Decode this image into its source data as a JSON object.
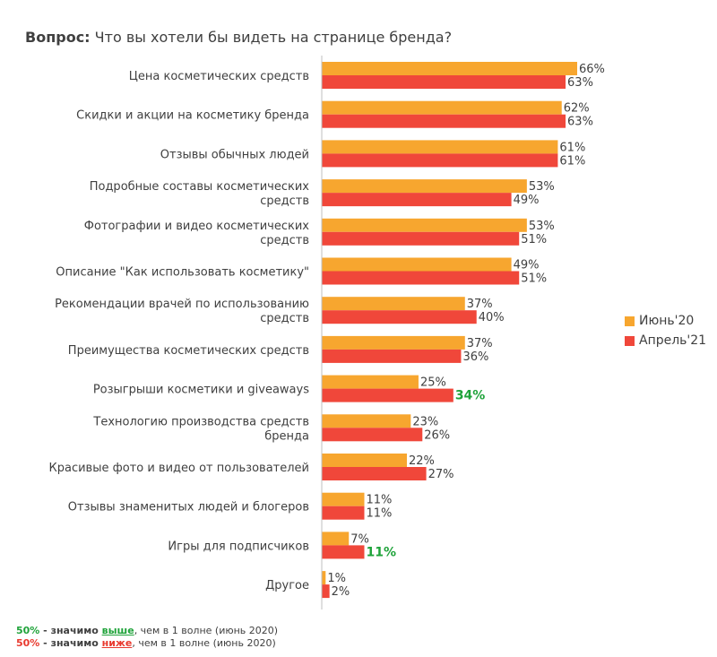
{
  "title": {
    "prefix": "Вопрос:",
    "text": "Что вы хотели бы видеть на странице бренда?"
  },
  "colors": {
    "jun20": "#f7a62f",
    "apr21": "#f0473a",
    "sig_up": "#1fa33a",
    "sig_down": "#e8392e"
  },
  "chart_data": {
    "type": "bar",
    "orientation": "horizontal",
    "xlim": [
      0,
      70
    ],
    "categories": [
      "Цена косметических средств",
      "Скидки и акции на косметику бренда",
      "Отзывы обычных людей",
      "Подробные составы косметических средств",
      "Фотографии и видео косметических средств",
      "Описание \"Как использовать косметику\"",
      "Рекомендации врачей по использованию средств",
      "Преимущества косметических средств",
      "Розыгрыши косметики и giveaways",
      "Технологию производства  средств бренда",
      "Красивые фото и видео от пользователей",
      "Отзывы знаменитых людей и блогеров",
      "Игры для подписчиков",
      "Другое"
    ],
    "series": [
      {
        "name": "Июнь'20",
        "values": [
          66,
          62,
          61,
          53,
          53,
          49,
          37,
          37,
          25,
          23,
          22,
          11,
          7,
          1
        ]
      },
      {
        "name": "Апрель'21",
        "values": [
          63,
          63,
          61,
          49,
          51,
          51,
          40,
          36,
          34,
          26,
          27,
          11,
          11,
          2
        ]
      }
    ],
    "significant_higher": [
      [
        1,
        8
      ],
      [
        1,
        12
      ]
    ],
    "legend_position": "right"
  },
  "footnotes": {
    "higher": {
      "pct": "50%",
      "dash": " - значимо ",
      "word": "выше",
      "rest": ", чем в 1 волне (июнь 2020)"
    },
    "lower": {
      "pct": "50%",
      "dash": " - значимо ",
      "word": "ниже",
      "rest": ", чем в 1 волне (июнь 2020)"
    }
  }
}
